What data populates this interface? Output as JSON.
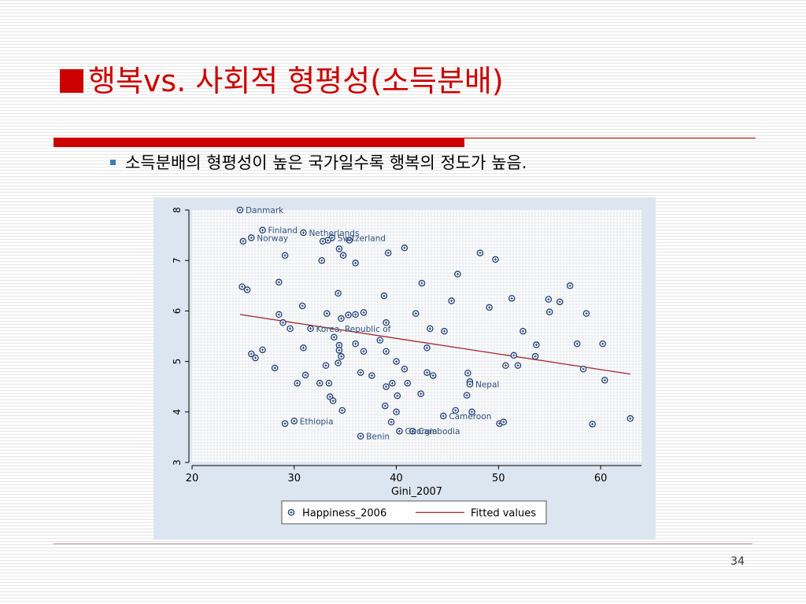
{
  "slide": {
    "title": "행복vs. 사회적 형평성(소득분배)",
    "bullet": "소득분배의 형평성이 높은 국가일수록 행복의 정도가 높음.",
    "page_number": "34"
  },
  "chart_data": {
    "type": "scatter",
    "xlabel": "Gini_2007",
    "ylabel": "",
    "xlim": [
      20,
      64
    ],
    "ylim": [
      3,
      8
    ],
    "x_ticks": [
      20,
      30,
      40,
      50,
      60
    ],
    "y_ticks": [
      3,
      4,
      5,
      6,
      7,
      8
    ],
    "grid": true,
    "legend_position": "bottom",
    "legend": [
      "Happiness_2006",
      "Fitted values"
    ],
    "colors": {
      "points": "#1f3d73",
      "fitted": "#a0282d",
      "plot_bg": "#ffffff",
      "panel_bg": "#dce6f0"
    },
    "series": [
      {
        "name": "Happiness_2006",
        "points": [
          [
            24.7,
            8.0
          ],
          [
            26.9,
            7.6
          ],
          [
            30.9,
            7.55
          ],
          [
            33.7,
            7.45
          ],
          [
            35.4,
            7.4
          ],
          [
            33.3,
            7.4
          ],
          [
            25.8,
            7.45
          ],
          [
            25.0,
            7.38
          ],
          [
            32.8,
            7.38
          ],
          [
            34.4,
            7.23
          ],
          [
            40.8,
            7.25
          ],
          [
            39.2,
            7.15
          ],
          [
            29.1,
            7.1
          ],
          [
            34.8,
            7.1
          ],
          [
            32.7,
            7.0
          ],
          [
            36.0,
            6.95
          ],
          [
            48.2,
            7.15
          ],
          [
            49.7,
            7.02
          ],
          [
            46.0,
            6.73
          ],
          [
            42.5,
            6.55
          ],
          [
            28.5,
            6.57
          ],
          [
            24.9,
            6.48
          ],
          [
            25.4,
            6.42
          ],
          [
            57.0,
            6.5
          ],
          [
            34.3,
            6.35
          ],
          [
            38.8,
            6.3
          ],
          [
            45.4,
            6.2
          ],
          [
            51.3,
            6.25
          ],
          [
            54.9,
            6.23
          ],
          [
            56.0,
            6.18
          ],
          [
            30.8,
            6.1
          ],
          [
            49.1,
            6.07
          ],
          [
            28.5,
            5.93
          ],
          [
            33.2,
            5.95
          ],
          [
            35.3,
            5.92
          ],
          [
            36.0,
            5.93
          ],
          [
            36.8,
            5.97
          ],
          [
            41.9,
            5.95
          ],
          [
            55.0,
            5.98
          ],
          [
            58.6,
            5.95
          ],
          [
            34.6,
            5.85
          ],
          [
            28.9,
            5.77
          ],
          [
            39.0,
            5.77
          ],
          [
            29.6,
            5.65
          ],
          [
            31.6,
            5.65
          ],
          [
            43.3,
            5.65
          ],
          [
            44.7,
            5.6
          ],
          [
            52.4,
            5.6
          ],
          [
            33.9,
            5.48
          ],
          [
            38.4,
            5.42
          ],
          [
            36.0,
            5.35
          ],
          [
            34.4,
            5.32
          ],
          [
            53.7,
            5.33
          ],
          [
            57.7,
            5.35
          ],
          [
            60.2,
            5.35
          ],
          [
            30.9,
            5.27
          ],
          [
            34.4,
            5.22
          ],
          [
            36.8,
            5.2
          ],
          [
            39.0,
            5.2
          ],
          [
            43.0,
            5.27
          ],
          [
            26.9,
            5.23
          ],
          [
            25.8,
            5.15
          ],
          [
            51.5,
            5.12
          ],
          [
            26.2,
            5.07
          ],
          [
            34.6,
            5.1
          ],
          [
            53.6,
            5.1
          ],
          [
            40.0,
            5.0
          ],
          [
            33.1,
            4.92
          ],
          [
            34.3,
            4.97
          ],
          [
            28.1,
            4.87
          ],
          [
            40.8,
            4.85
          ],
          [
            50.7,
            4.92
          ],
          [
            51.9,
            4.92
          ],
          [
            58.3,
            4.85
          ],
          [
            36.5,
            4.78
          ],
          [
            37.6,
            4.72
          ],
          [
            43.0,
            4.78
          ],
          [
            43.6,
            4.72
          ],
          [
            47.0,
            4.77
          ],
          [
            31.1,
            4.73
          ],
          [
            30.3,
            4.57
          ],
          [
            32.5,
            4.57
          ],
          [
            33.4,
            4.57
          ],
          [
            39.6,
            4.57
          ],
          [
            39.0,
            4.5
          ],
          [
            41.1,
            4.57
          ],
          [
            47.2,
            4.6
          ],
          [
            47.2,
            4.55
          ],
          [
            60.4,
            4.63
          ],
          [
            33.5,
            4.3
          ],
          [
            33.8,
            4.22
          ],
          [
            40.1,
            4.32
          ],
          [
            42.4,
            4.36
          ],
          [
            46.9,
            4.33
          ],
          [
            38.9,
            4.12
          ],
          [
            34.7,
            4.03
          ],
          [
            40.0,
            4.0
          ],
          [
            45.8,
            4.03
          ],
          [
            47.4,
            4.0
          ],
          [
            44.6,
            3.92
          ],
          [
            62.9,
            3.87
          ],
          [
            30.0,
            3.82
          ],
          [
            39.5,
            3.8
          ],
          [
            50.1,
            3.77
          ],
          [
            50.5,
            3.8
          ],
          [
            59.2,
            3.76
          ],
          [
            29.1,
            3.77
          ],
          [
            40.3,
            3.62
          ],
          [
            41.6,
            3.62
          ],
          [
            36.5,
            3.52
          ]
        ]
      },
      {
        "name": "Fitted values",
        "line": [
          [
            24.7,
            5.93
          ],
          [
            62.9,
            4.75
          ]
        ]
      }
    ],
    "annotations": [
      {
        "label": "Danmark",
        "x": 24.7,
        "y": 8.0
      },
      {
        "label": "Finland",
        "x": 26.9,
        "y": 7.6
      },
      {
        "label": "Netherlands",
        "x": 30.9,
        "y": 7.55
      },
      {
        "label": "Switzerland",
        "x": 33.7,
        "y": 7.45
      },
      {
        "label": "Norway",
        "x": 25.8,
        "y": 7.45
      },
      {
        "label": "Korea, Republic of",
        "x": 31.6,
        "y": 5.65
      },
      {
        "label": "Nepal",
        "x": 47.2,
        "y": 4.55
      },
      {
        "label": "Cameroon",
        "x": 44.6,
        "y": 3.92
      },
      {
        "label": "Ethiopia",
        "x": 30.0,
        "y": 3.82
      },
      {
        "label": "Georgia",
        "x": 40.3,
        "y": 3.62
      },
      {
        "label": "Cambodia",
        "x": 41.6,
        "y": 3.62
      },
      {
        "label": "Benin",
        "x": 36.5,
        "y": 3.52
      }
    ]
  }
}
